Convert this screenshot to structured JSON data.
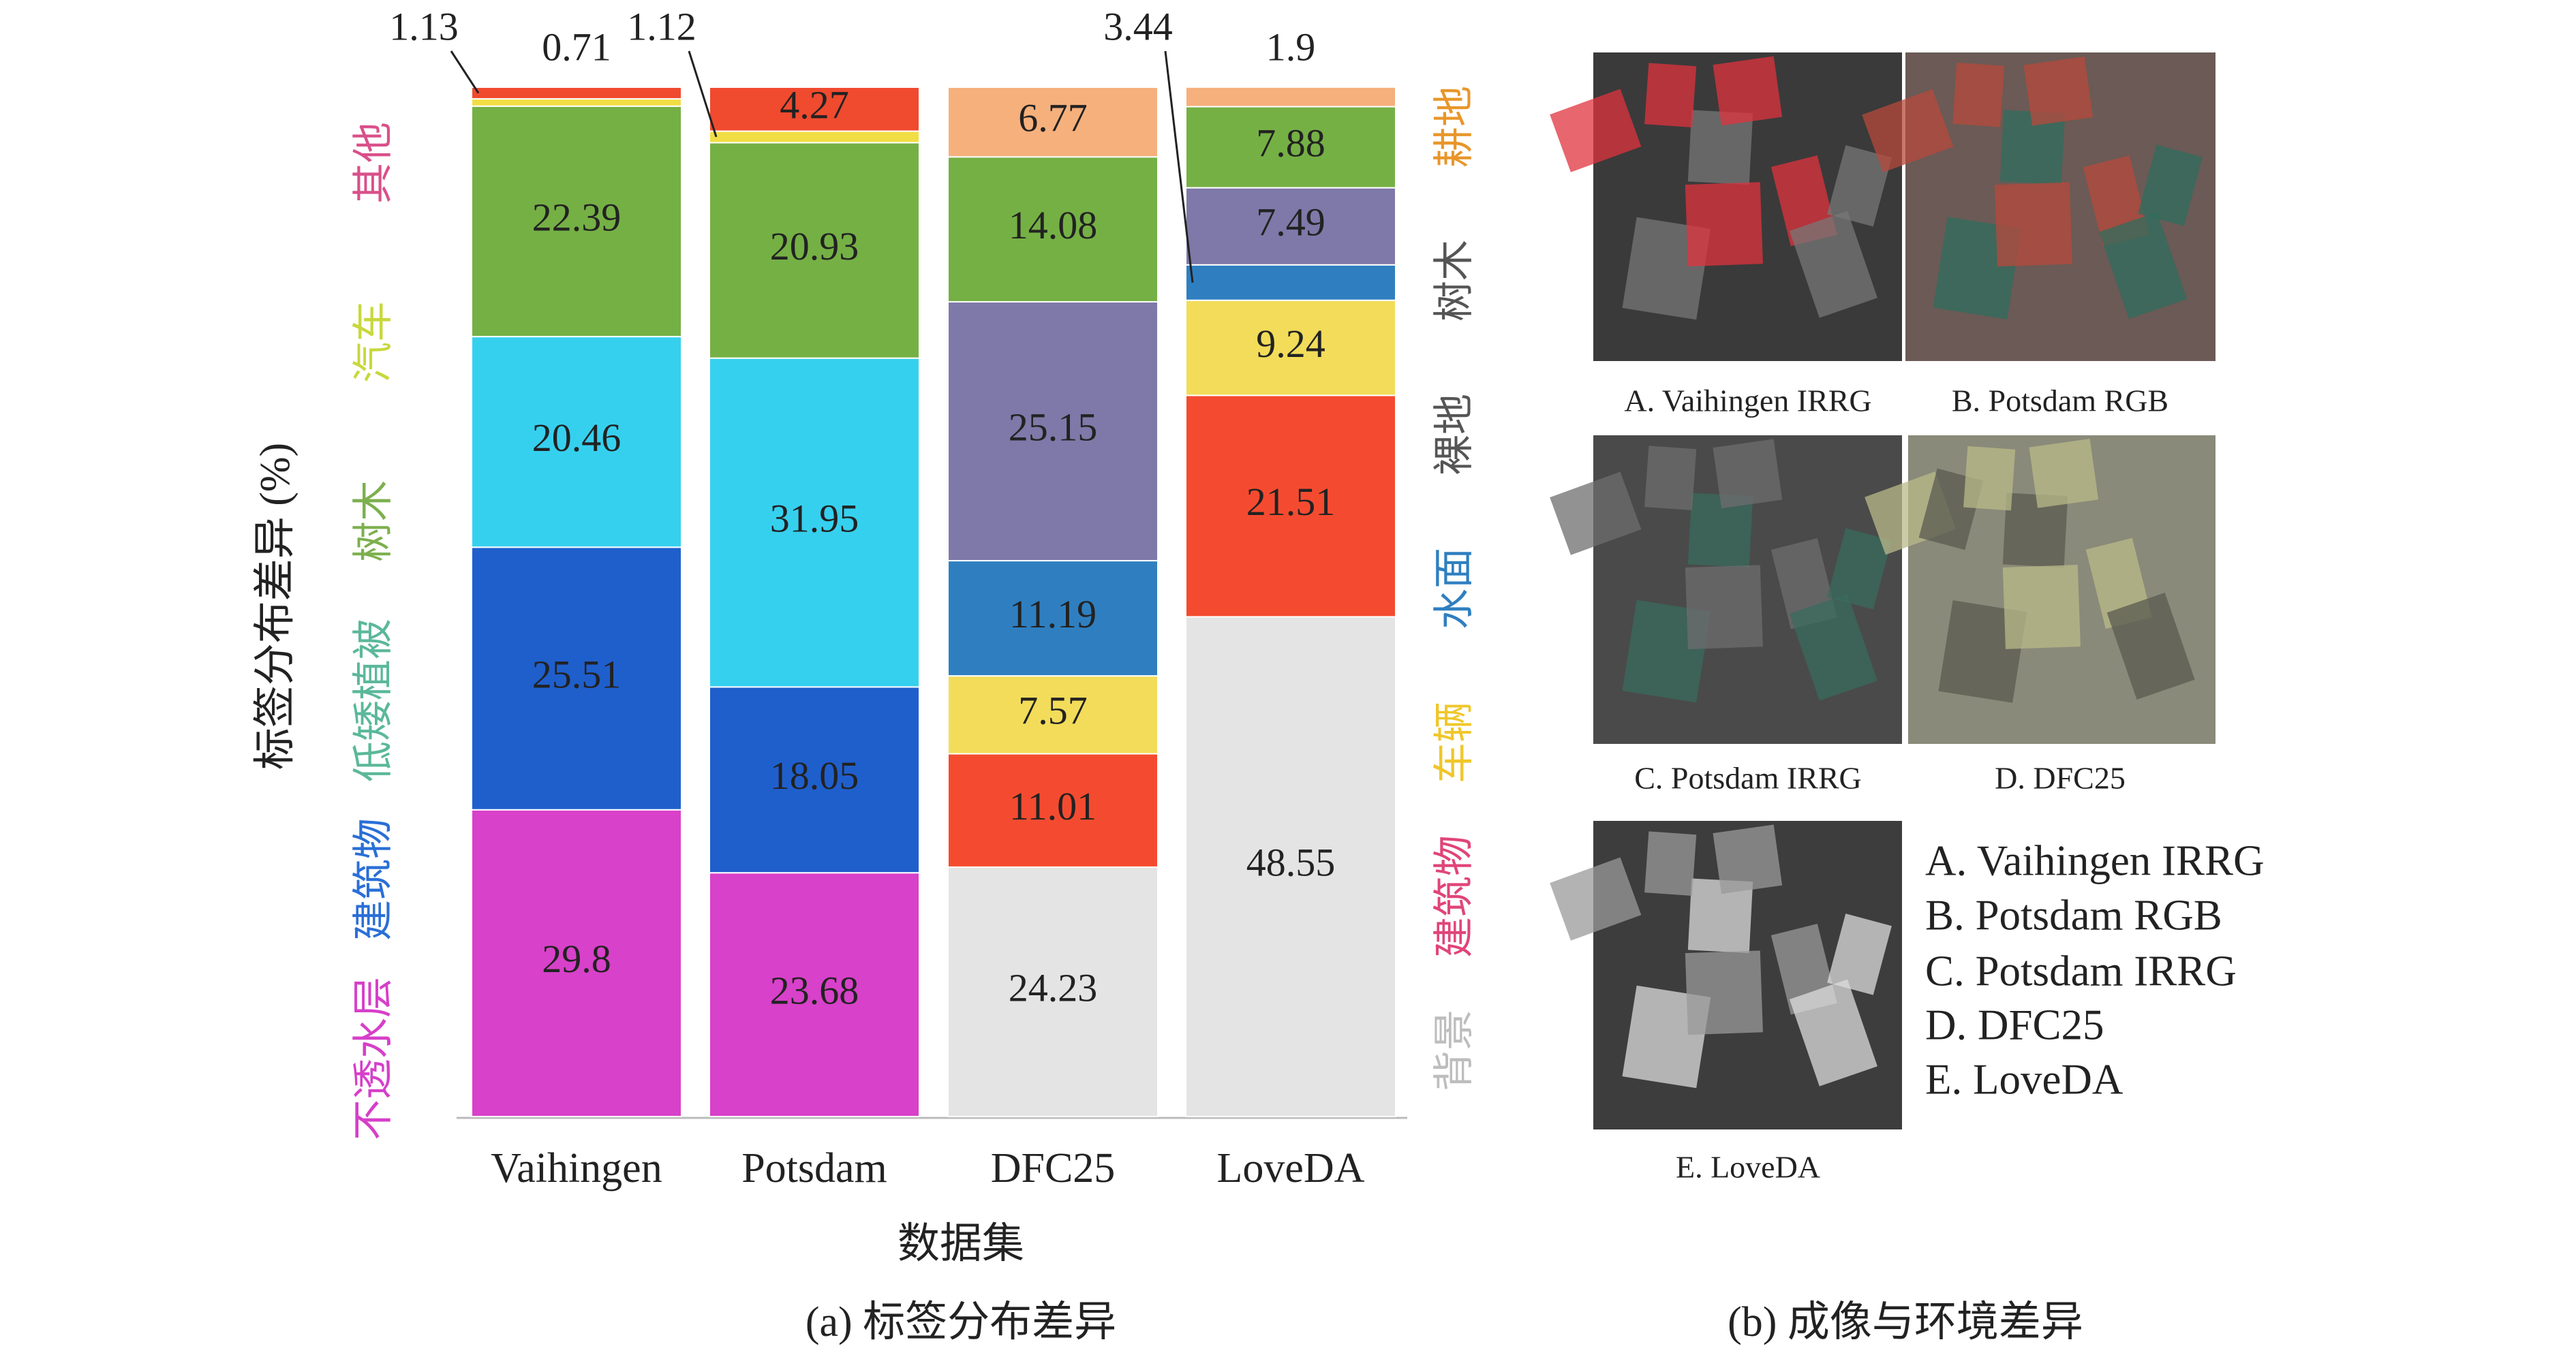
{
  "chart_data": {
    "type": "stacked-bar",
    "caption": "(a) 标签分布差异",
    "ylabel": "标签分布差异 (%)",
    "xlabel": "数据集",
    "categories": [
      "Vaihingen",
      "Potsdam",
      "DFC25",
      "LoveDA"
    ],
    "ylim": [
      0,
      100
    ],
    "series": [
      {
        "name": "不透水层",
        "group": "left",
        "color": "#d841c9",
        "label_color": "#d63fc9",
        "values": [
          29.8,
          23.68,
          null,
          null
        ]
      },
      {
        "name": "建筑物",
        "group": "left",
        "color": "#1f5fcc",
        "label_color": "#2a6fd6",
        "values": [
          25.51,
          18.05,
          null,
          null
        ]
      },
      {
        "name": "低矮植被",
        "group": "left",
        "color": "#36d0ef",
        "label_color": "#5bb89a",
        "values": [
          20.46,
          31.95,
          null,
          null
        ]
      },
      {
        "name": "树木",
        "group": "left",
        "color": "#75b045",
        "label_color": "#7cb04e",
        "values": [
          22.39,
          20.93,
          null,
          null
        ]
      },
      {
        "name": "汽车",
        "group": "left",
        "color": "#f1de45",
        "label_color": "#c8d83c",
        "values": [
          0.71,
          1.12,
          null,
          null
        ]
      },
      {
        "name": "其他",
        "group": "left",
        "color": "#f04a2f",
        "label_color": "#d9508a",
        "values": [
          1.13,
          4.27,
          null,
          null
        ]
      },
      {
        "name": "背景",
        "group": "right",
        "color": "#e4e4e4",
        "label_color": "#bdbdbd",
        "values": [
          null,
          null,
          24.23,
          48.55
        ]
      },
      {
        "name": "建筑物",
        "group": "right",
        "color": "#f44b30",
        "label_color": "#e0457a",
        "values": [
          null,
          null,
          11.01,
          21.51
        ]
      },
      {
        "name": "车辆",
        "group": "right",
        "color": "#f2dc5a",
        "label_color": "#efc72a",
        "values": [
          null,
          null,
          7.57,
          9.24
        ]
      },
      {
        "name": "水面",
        "group": "right",
        "color": "#2f7fc0",
        "label_color": "#2f7fc0",
        "values": [
          null,
          null,
          11.19,
          3.44
        ]
      },
      {
        "name": "裸地",
        "group": "right",
        "color": "#7e79a8",
        "label_color": "#555555",
        "values": [
          null,
          null,
          25.15,
          7.49
        ]
      },
      {
        "name": "树木",
        "group": "right",
        "color": "#75b045",
        "label_color": "#555555",
        "values": [
          null,
          null,
          14.08,
          7.88
        ]
      },
      {
        "name": "耕地",
        "group": "right",
        "color": "#f6b07c",
        "label_color": "#e8962a",
        "values": [
          null,
          null,
          6.77,
          1.9
        ]
      }
    ]
  },
  "panel_b": {
    "caption": "(b) 成像与环境差异",
    "images": [
      {
        "caption": "A. Vaihingen IRRG"
      },
      {
        "caption": "B. Potsdam RGB"
      },
      {
        "caption": "C. Potsdam IRRG"
      },
      {
        "caption": "D. DFC25"
      },
      {
        "caption": "E. LoveDA"
      }
    ],
    "legend": [
      "A. Vaihingen IRRG",
      "B. Potsdam RGB",
      "C. Potsdam IRRG",
      "D. DFC25",
      "E. LoveDA"
    ]
  }
}
